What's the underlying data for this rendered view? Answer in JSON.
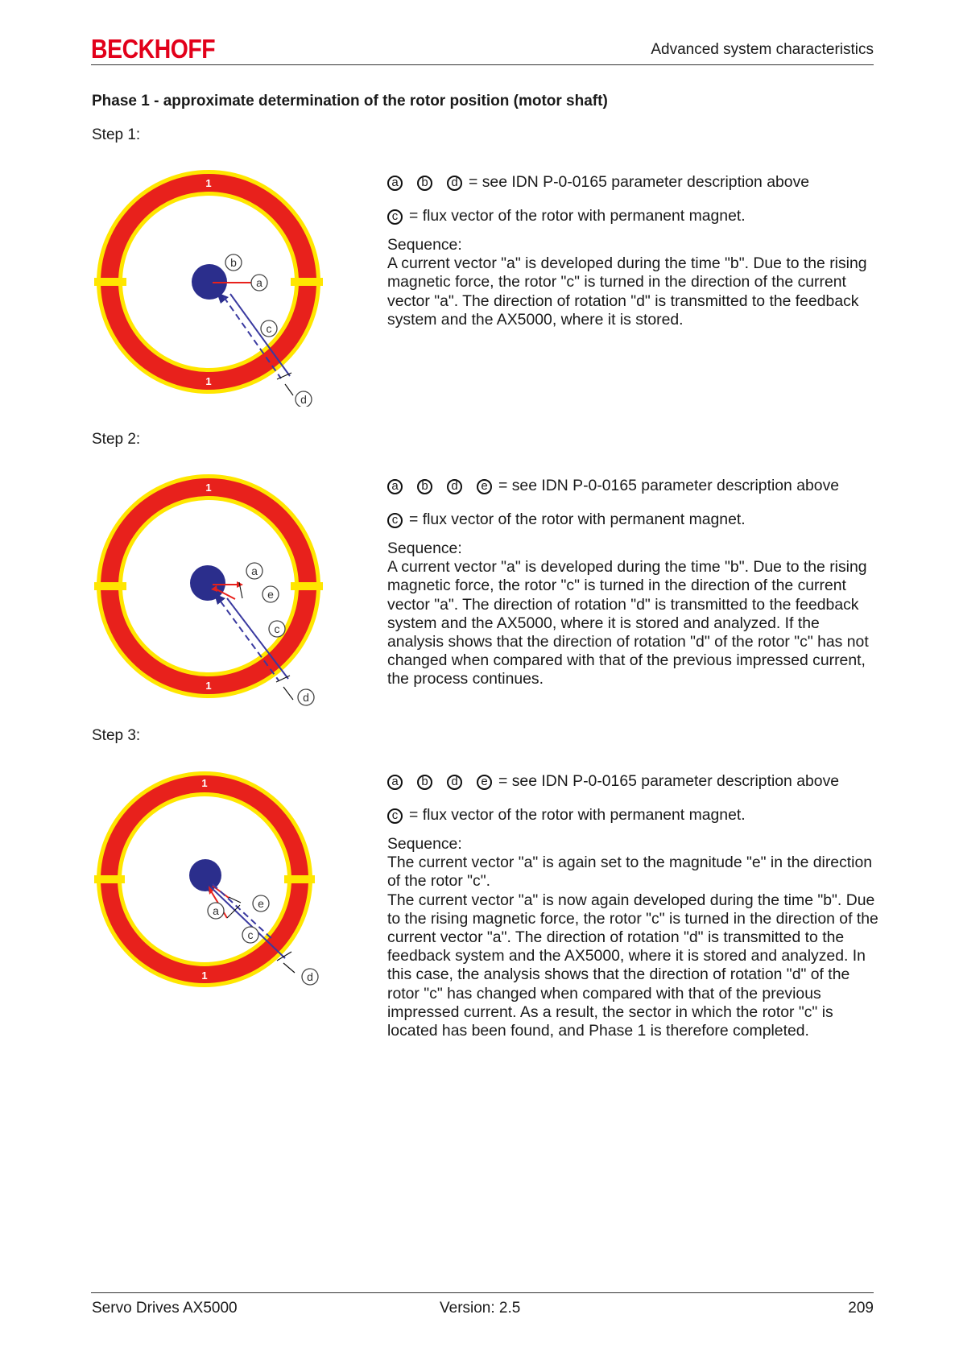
{
  "header": {
    "logo": "BECKHOFF",
    "section": "Advanced system characteristics"
  },
  "heading": "Phase 1 - approximate determination of the rotor position (motor shaft)",
  "steps": [
    {
      "label": "Step 1:",
      "legend_letters": [
        "a",
        "b",
        "d"
      ],
      "legend_text": "= see IDN P-0-0165 parameter description above",
      "flux_letter": "c",
      "flux_text": "= flux vector of the rotor with permanent magnet.",
      "sequence_title": "Sequence:",
      "sequence_text": "A current vector \"a\" is developed during the time \"b\". Due to the rising magnetic force, the rotor \"c\" is turned in the direction of the current vector \"a\". The direction of rotation \"d\" is transmitted to the feedback system and the AX5000, where it is stored.",
      "figure": {
        "sector_label": "1",
        "labels": [
          "a",
          "b",
          "c",
          "d"
        ]
      }
    },
    {
      "label": "Step 2:",
      "legend_letters": [
        "a",
        "b",
        "d",
        "e"
      ],
      "legend_text": "= see IDN P-0-0165 parameter description above",
      "flux_letter": "c",
      "flux_text": "= flux vector of the rotor with permanent magnet.",
      "sequence_title": "Sequence:",
      "sequence_text": "A current vector \"a\" is developed during the time \"b\". Due to the rising magnetic force, the rotor \"c\" is turned in the direction of the current vector \"a\". The direction of rotation \"d\" is transmitted to the feedback system and the AX5000, where it is stored and analyzed. If the analysis shows that the direction of rotation \"d\" of the rotor \"c\" has not changed when compared with that of the previous impressed current, the process continues.",
      "figure": {
        "sector_label": "1",
        "labels": [
          "a",
          "e",
          "c",
          "d"
        ]
      }
    },
    {
      "label": "Step 3:",
      "legend_letters": [
        "a",
        "b",
        "d",
        "e"
      ],
      "legend_text": "= see IDN P-0-0165 parameter description above",
      "flux_letter": "c",
      "flux_text": "= flux vector of the rotor with permanent magnet.",
      "sequence_title": "Sequence:",
      "sequence_text": "The current vector \"a\" is again set to the magnitude \"e\" in the direction of the rotor \"c\".\nThe current vector \"a\" is now again developed during the time \"b\". Due to the rising magnetic force, the rotor \"c\" is turned in the direction of the current vector \"a\". The direction of rotation \"d\" is transmitted to the feedback system and the AX5000, where it is stored and analyzed. In this case, the analysis shows that the direction of rotation \"d\" of the rotor \"c\" has changed when compared with that of the previous impressed current. As a result, the sector in which the rotor \"c\" is located has been found, and Phase 1 is therefore completed.",
      "figure": {
        "sector_label": "1",
        "labels": [
          "a",
          "e",
          "c",
          "d"
        ]
      }
    }
  ],
  "footer": {
    "left": "Servo Drives AX5000",
    "center": "Version: 2.5",
    "right": "209"
  },
  "colors": {
    "ring_red": "#e8211c",
    "ring_yellow": "#ffe600",
    "rotor_blue": "#2b2e8c",
    "vector_red": "#e8211c",
    "vector_blue": "#3a3aa0",
    "logo_red": "#e2001a"
  }
}
